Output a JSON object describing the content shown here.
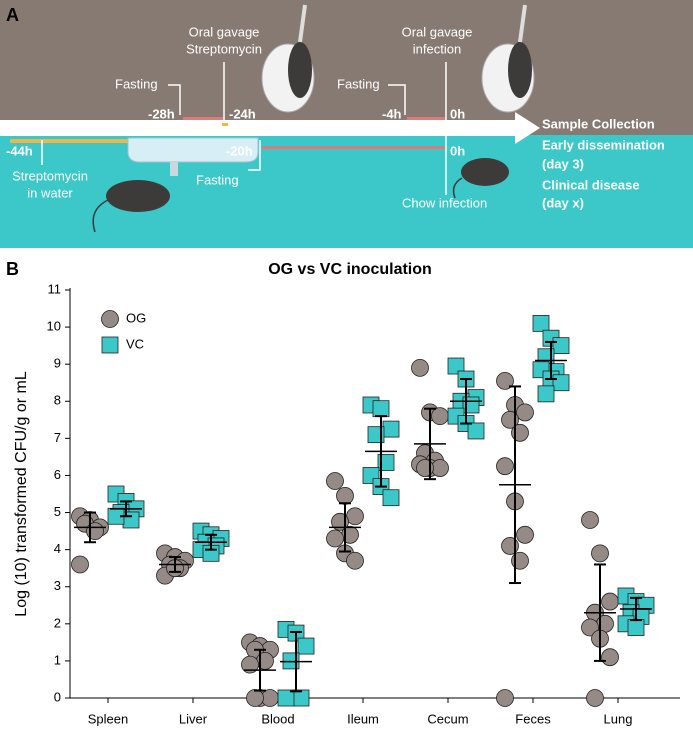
{
  "panel_a": {
    "label": "A",
    "labels": [
      "Fasting",
      "-28h",
      "-24h",
      "Oral gavage",
      "Streptomycin",
      "Fasting",
      "-4h",
      "0h",
      "Oral gavage",
      "infection",
      "Sample Collection",
      "Early dissemination",
      "(day 3)",
      "Clinical disease",
      "(day x)",
      "-44h",
      "Streptomycin",
      "in water",
      "-20h",
      "Fasting",
      "0h",
      "Chow infection"
    ]
  },
  "chart_data": {
    "type": "dotplot",
    "panel_label": "B",
    "title": "OG vs VC inoculation",
    "y_label": "Log (10) transformed CFU/g or mL",
    "categories": [
      "Spleen",
      "Liver",
      "Blood",
      "Ileum",
      "Cecum",
      "Feces",
      "Lung"
    ],
    "ylim": [
      0,
      11
    ],
    "yticks": [
      0,
      1,
      2,
      3,
      4,
      5,
      6,
      7,
      8,
      9,
      10,
      11
    ],
    "legend": "top-left",
    "series": [
      {
        "name": "OG",
        "color": "#958a85",
        "marker": "circle",
        "values": [
          [
            4.9,
            4.8,
            4.6,
            4.7,
            4.5,
            3.6
          ],
          [
            3.9,
            3.8,
            3.7,
            3.6,
            3.5,
            3.3,
            3.5
          ],
          [
            1.5,
            1.4,
            1.3,
            1.3,
            1.0,
            0.9,
            0,
            0,
            0
          ],
          [
            5.85,
            5.45,
            4.9,
            4.75,
            4.4,
            4.3,
            3.9,
            3.7
          ],
          [
            8.9,
            7.7,
            7.6,
            6.6,
            6.4,
            6.3,
            6.2,
            6.2,
            6.2
          ],
          [
            8.55,
            7.9,
            7.7,
            7.5,
            7.15,
            6.25,
            5.3,
            4.4,
            4.1,
            3.7,
            0
          ],
          [
            4.8,
            3.9,
            2.6,
            2.3,
            2.0,
            1.9,
            1.6,
            1.1,
            0
          ]
        ],
        "means": [
          4.6,
          3.6,
          0.75,
          4.6,
          6.85,
          5.75,
          2.3
        ],
        "sd": [
          0.4,
          0.2,
          0.55,
          0.65,
          0.95,
          2.65,
          1.3
        ]
      },
      {
        "name": "VC",
        "color": "#3cc8c8",
        "marker": "square",
        "values": [
          [
            5.5,
            5.3,
            5.1,
            5.0,
            4.8,
            4.9
          ],
          [
            4.5,
            4.4,
            4.3,
            4.2,
            4.1,
            4.0,
            3.9
          ],
          [
            1.85,
            1.75,
            1.4,
            1.0,
            0,
            0
          ],
          [
            7.9,
            7.8,
            7.25,
            7.1,
            6.35,
            6.0,
            5.7,
            5.4
          ],
          [
            8.95,
            8.6,
            8.1,
            8.0,
            7.9,
            7.6,
            7.4,
            7.2
          ],
          [
            10.1,
            9.7,
            9.5,
            9.2,
            8.8,
            8.85,
            8.6,
            8.5,
            8.2
          ],
          [
            2.75,
            2.6,
            2.5,
            2.3,
            2.2,
            2.0,
            1.9
          ]
        ],
        "means": [
          5.1,
          4.2,
          0.98,
          6.65,
          8.0,
          9.1,
          2.4
        ],
        "sd": [
          0.2,
          0.2,
          0.8,
          0.95,
          0.6,
          0.5,
          0.3
        ]
      }
    ]
  }
}
